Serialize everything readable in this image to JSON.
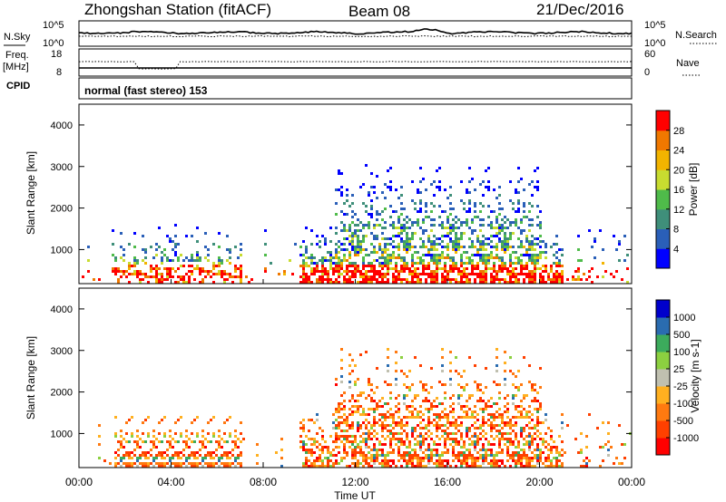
{
  "header": {
    "station": "Zhongshan Station (fitACF)",
    "beam": "Beam 08",
    "date": "21/Dec/2016"
  },
  "noise_panel": {
    "left_label": "N.Sky",
    "right_label": "N.Search",
    "left_ticks": [
      "10^5",
      "10^0"
    ],
    "right_ticks": [
      "10^5",
      "10^0"
    ]
  },
  "freq_panel": {
    "left_label_1": "Freq.",
    "left_label_2": "[MHz]",
    "right_label": "Nave",
    "left_ticks": [
      "18",
      "8"
    ],
    "right_ticks": [
      "60",
      "0"
    ]
  },
  "cpid_panel": {
    "label": "CPID",
    "mode": "normal (fast stereo) 153"
  },
  "colors": {
    "power_scale": [
      "#0000ff",
      "#2a5fb8",
      "#3f8f7a",
      "#4fbb4a",
      "#c8dc30",
      "#f2b400",
      "#f07800",
      "#ff0000"
    ],
    "velocity_scale": [
      "#ff0000",
      "#ff4000",
      "#ff7a10",
      "#ffb020",
      "#c0c0b0",
      "#8cd040",
      "#3cab5c",
      "#2a6cb0",
      "#0000cc"
    ]
  },
  "chart_data": [
    {
      "type": "heatmap",
      "name": "power",
      "ylabel": "Slant Range [km]",
      "y_ticks": [
        "1000",
        "2000",
        "3000",
        "4000"
      ],
      "ylim": [
        180,
        4500
      ],
      "colorbar_label": "Power [dB]",
      "colorbar_ticks": [
        "4",
        "8",
        "12",
        "16",
        "20",
        "24",
        "28"
      ],
      "colorbar_range": [
        0,
        32
      ]
    },
    {
      "type": "heatmap",
      "name": "velocity",
      "ylabel": "Slant Range [km]",
      "y_ticks": [
        "1000",
        "2000",
        "3000",
        "4000"
      ],
      "ylim": [
        180,
        4500
      ],
      "colorbar_label": "Velocity [m s-1]",
      "colorbar_ticks": [
        "-1000",
        "-500",
        "-100",
        "-25",
        "25",
        "100",
        "500",
        "1000"
      ]
    }
  ],
  "time_axis": {
    "ticks": [
      "00:00",
      "04:00",
      "08:00",
      "12:00",
      "16:00",
      "20:00",
      "00:00"
    ],
    "label": "Time UT"
  }
}
